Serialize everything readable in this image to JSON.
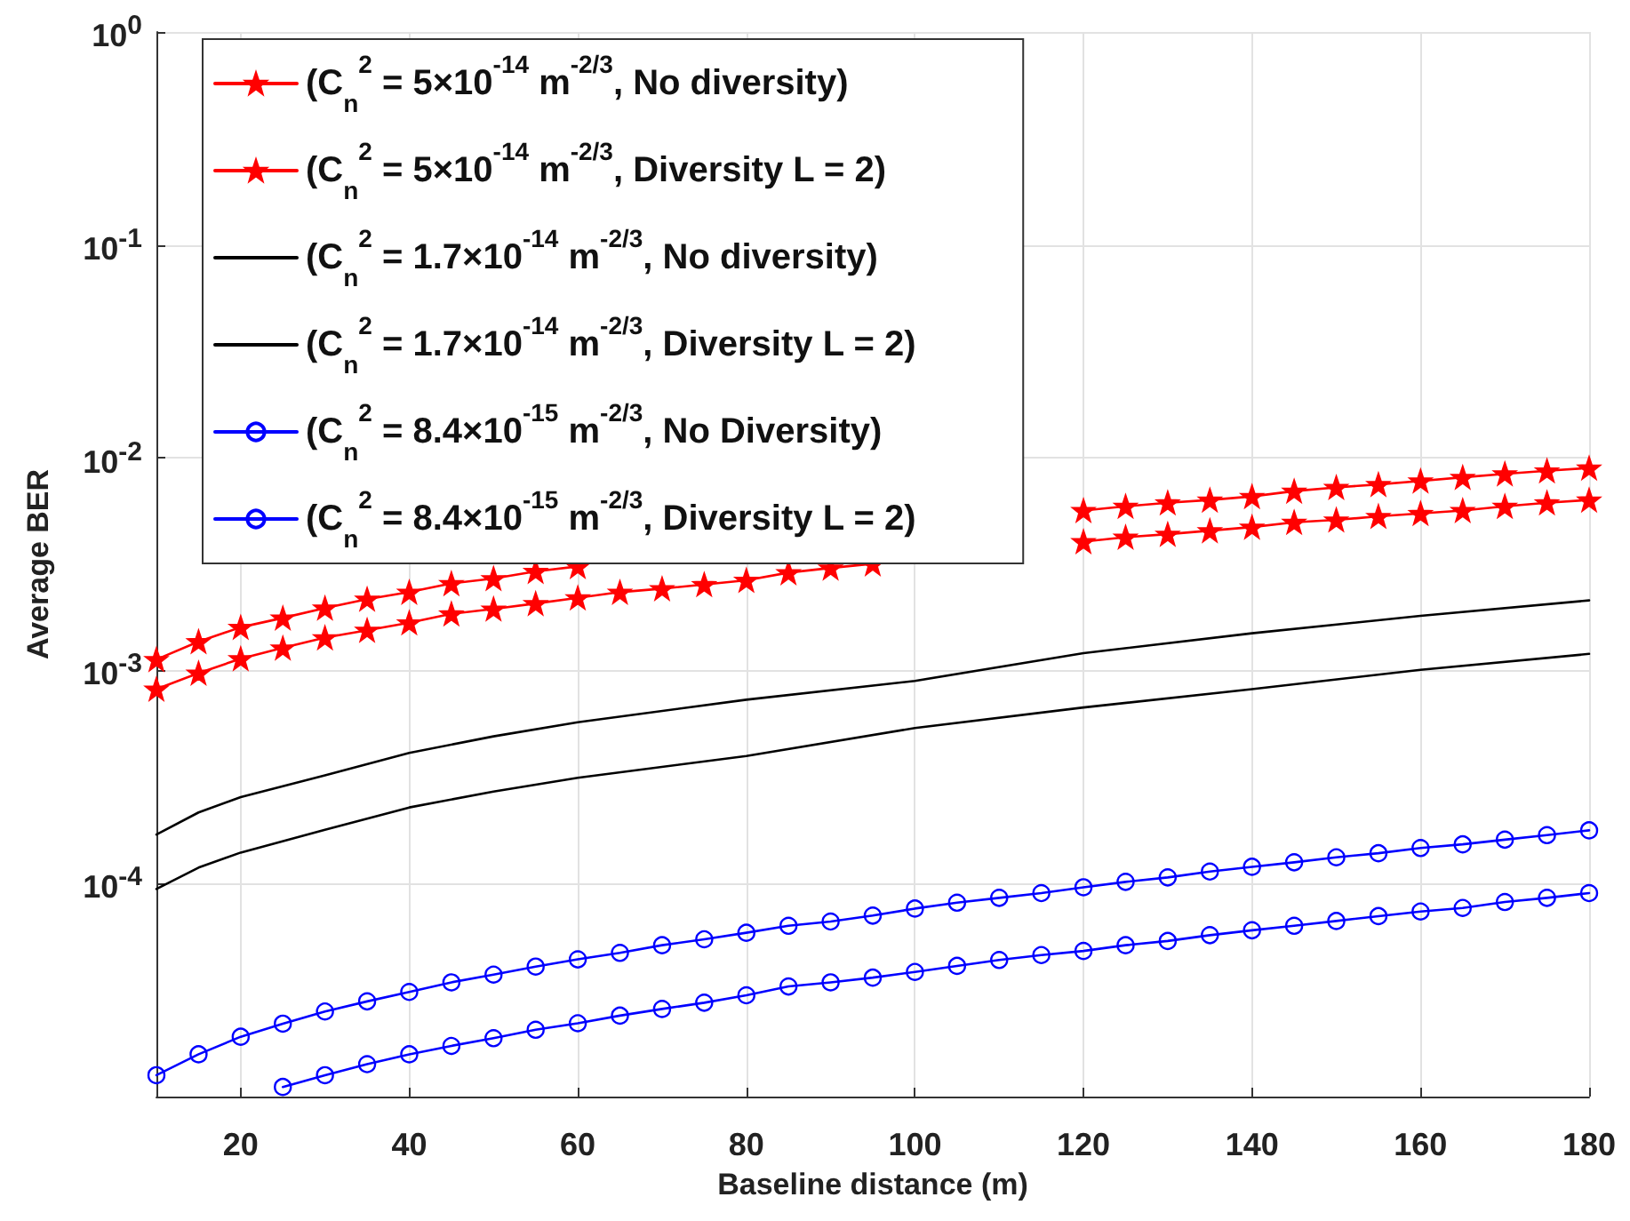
{
  "chart_data": {
    "type": "line",
    "xlabel": "Baseline distance (m)",
    "ylabel": "Average BER",
    "xlim": [
      10,
      180
    ],
    "xticks": [
      20,
      40,
      60,
      80,
      100,
      120,
      140,
      160,
      180
    ],
    "ylim": [
      1e-05,
      1
    ],
    "yticks": [
      {
        "value": 1e-05,
        "label": null
      },
      {
        "value": 0.0001,
        "label": "10$^{-4}$"
      },
      {
        "value": 0.001,
        "label": "10$^{-3}$"
      },
      {
        "value": 0.01,
        "label": "10$^{-2}$"
      },
      {
        "value": 0.1,
        "label": "10$^{-1}$"
      },
      {
        "value": 1,
        "label": "10$^{0}$"
      }
    ],
    "log": "y",
    "grid": true,
    "legend": "top left",
    "series": [
      {
        "name": "(C$_{n}$$^{2}$ = 5×10$^{-14}$ m$^{-2/3}$, No diversity)",
        "color": "#ff0000",
        "marker": "star",
        "x": [
          10,
          15,
          20,
          25,
          30,
          35,
          40,
          45,
          50,
          55,
          60,
          65,
          70,
          75,
          80,
          85,
          90,
          95,
          100,
          105,
          110,
          115,
          120,
          125,
          130,
          135,
          140,
          145,
          150,
          155,
          160,
          165,
          170,
          175,
          180
        ],
        "values": [
          0.00113,
          0.00137,
          0.0016,
          0.00177,
          0.00197,
          0.00217,
          0.00234,
          0.00257,
          0.00271,
          0.00293,
          0.00309,
          null,
          null,
          null,
          null,
          null,
          null,
          null,
          null,
          null,
          null,
          null,
          0.00566,
          0.00592,
          0.00615,
          0.00634,
          0.00659,
          0.00698,
          0.00726,
          0.0075,
          0.00779,
          0.0081,
          0.00841,
          0.00869,
          0.00896
        ]
      },
      {
        "name": "(C$_{n}$$^{2}$ = 5×10$^{-14}$ m$^{-2/3}$, Diversity L = 2)",
        "color": "#ff0000",
        "marker": "star",
        "x": [
          10,
          15,
          20,
          25,
          30,
          35,
          40,
          45,
          50,
          55,
          60,
          65,
          70,
          75,
          80,
          85,
          90,
          95,
          100,
          105,
          110,
          115,
          120,
          125,
          130,
          135,
          140,
          145,
          150,
          155,
          160,
          165,
          170,
          175,
          180
        ],
        "values": [
          0.00082,
          0.000975,
          0.00114,
          0.00128,
          0.00143,
          0.00155,
          0.00168,
          0.00185,
          0.00195,
          0.00207,
          0.0022,
          0.00234,
          0.00243,
          0.00254,
          0.00266,
          0.00289,
          0.00304,
          0.00318,
          null,
          null,
          null,
          null,
          0.00404,
          0.00424,
          0.00438,
          0.00455,
          0.00473,
          0.00498,
          0.00511,
          0.00531,
          0.00548,
          0.00566,
          0.00592,
          0.00615,
          0.00634
        ]
      },
      {
        "name": "(C$_{n}$$^{2}$ = 1.7×10$^{-14}$ m$^{-2/3}$, No diversity)",
        "color": "#000000",
        "marker": "none",
        "x": [
          10,
          15,
          20,
          30,
          40,
          50,
          60,
          80,
          100,
          120,
          140,
          160,
          180
        ],
        "values": [
          0.00017,
          0.000216,
          0.000255,
          0.000323,
          0.000411,
          0.000492,
          0.000573,
          0.000731,
          0.000896,
          0.00121,
          0.0015,
          0.00181,
          0.00214
        ]
      },
      {
        "name": "(C$_{n}$$^{2}$ = 1.7×10$^{-14}$ m$^{-2/3}$, Diversity L = 2)",
        "color": "#000000",
        "marker": "none",
        "x": [
          10,
          15,
          20,
          30,
          40,
          50,
          60,
          80,
          100,
          120,
          140,
          160,
          180
        ],
        "values": [
          9.44e-05,
          0.000119,
          0.00014,
          0.000179,
          0.000228,
          0.000271,
          0.000314,
          0.000398,
          0.000538,
          0.000672,
          0.00082,
          0.00101,
          0.0012
        ]
      },
      {
        "name": "(C$_{n}$$^{2}$ = 8.4×10$^{-15}$ m$^{-2/3}$, No Diversity)",
        "color": "#0000ff",
        "marker": "circle",
        "x": [
          10,
          15,
          20,
          25,
          30,
          35,
          40,
          45,
          50,
          55,
          60,
          65,
          70,
          75,
          80,
          85,
          90,
          95,
          100,
          105,
          110,
          115,
          120,
          125,
          130,
          135,
          140,
          145,
          150,
          155,
          160,
          165,
          170,
          175,
          180
        ],
        "values": [
          1.26e-05,
          1.58e-05,
          1.91e-05,
          2.2e-05,
          2.51e-05,
          2.8e-05,
          3.1e-05,
          3.44e-05,
          3.74e-05,
          4.08e-05,
          4.41e-05,
          4.73e-05,
          5.14e-05,
          5.48e-05,
          5.88e-05,
          6.34e-05,
          6.64e-05,
          7.08e-05,
          7.64e-05,
          8.14e-05,
          8.58e-05,
          9.03e-05,
          9.62e-05,
          0.000102,
          0.000107,
          0.000114,
          0.00012,
          0.000126,
          0.000133,
          0.000139,
          0.000147,
          0.000153,
          0.000161,
          0.000169,
          0.000178
        ]
      },
      {
        "name": "(C$_{n}$$^{2}$ = 8.4×10$^{-15}$ m$^{-2/3}$, Diversity L = 2)",
        "color": "#0000ff",
        "marker": "circle",
        "x": [
          25,
          30,
          35,
          40,
          45,
          50,
          55,
          60,
          65,
          70,
          75,
          80,
          85,
          90,
          95,
          100,
          105,
          110,
          115,
          120,
          125,
          130,
          135,
          140,
          145,
          150,
          155,
          160,
          165,
          170,
          175,
          180
        ],
        "values": [
          1.11e-05,
          1.26e-05,
          1.42e-05,
          1.58e-05,
          1.73e-05,
          1.88e-05,
          2.06e-05,
          2.21e-05,
          2.4e-05,
          2.58e-05,
          2.76e-05,
          2.99e-05,
          3.29e-05,
          3.44e-05,
          3.62e-05,
          3.85e-05,
          4.11e-05,
          4.38e-05,
          4.62e-05,
          4.83e-05,
          5.14e-05,
          5.38e-05,
          5.73e-05,
          6.04e-05,
          6.34e-05,
          6.68e-05,
          7.04e-05,
          7.4e-05,
          7.69e-05,
          8.2e-05,
          8.58e-05,
          9.03e-05
        ]
      }
    ]
  }
}
